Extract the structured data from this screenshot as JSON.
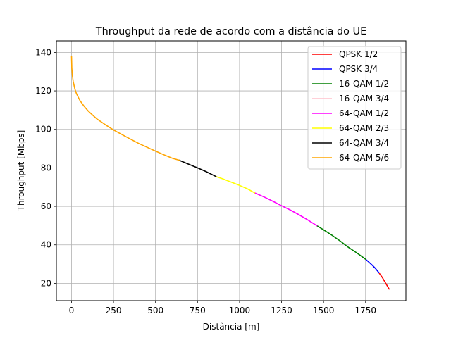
{
  "chart_data": {
    "type": "line",
    "title": "Throughput da rede de acordo com a distância do UE",
    "xlabel": "Distância [m]",
    "ylabel": "Throughput [Mbps]",
    "xlim": [
      -90,
      1990
    ],
    "ylim": [
      11,
      146
    ],
    "xticks": [
      0,
      250,
      500,
      750,
      1000,
      1250,
      1500,
      1750
    ],
    "xtick_labels": [
      "0",
      "250",
      "500",
      "750",
      "1000",
      "1250",
      "1500",
      "1750"
    ],
    "yticks": [
      20,
      40,
      60,
      80,
      100,
      120,
      140
    ],
    "ytick_labels": [
      "20",
      "40",
      "60",
      "80",
      "100",
      "120",
      "140"
    ],
    "grid": true,
    "legend_position": "top-right",
    "series": [
      {
        "name": "QPSK 1/2",
        "color": "#ff0000",
        "x": [
          1830,
          1850,
          1870,
          1890
        ],
        "y": [
          25.5,
          23.0,
          20.0,
          17.0
        ]
      },
      {
        "name": "QPSK 3/4",
        "color": "#0000ff",
        "x": [
          1750,
          1770,
          1790,
          1810,
          1830
        ],
        "y": [
          32.5,
          31.0,
          29.4,
          27.6,
          25.5
        ]
      },
      {
        "name": "16-QAM 1/2",
        "color": "#008000",
        "x": [
          1460,
          1500,
          1550,
          1600,
          1650,
          1700,
          1750
        ],
        "y": [
          50.0,
          47.8,
          45.0,
          41.9,
          38.6,
          35.7,
          32.5
        ]
      },
      {
        "name": "16-QAM 3/4",
        "color": "#ffc0cb",
        "x": [],
        "y": []
      },
      {
        "name": "64-QAM 1/2",
        "color": "#ff00ff",
        "x": [
          1090,
          1150,
          1200,
          1250,
          1300,
          1350,
          1400,
          1460
        ],
        "y": [
          67.0,
          64.7,
          62.6,
          60.3,
          58.2,
          55.8,
          53.3,
          50.0
        ]
      },
      {
        "name": "64-QAM 2/3",
        "color": "#ffff00",
        "x": [
          860,
          900,
          950,
          1000,
          1050,
          1090
        ],
        "y": [
          75.5,
          74.3,
          72.6,
          70.9,
          69.0,
          67.0
        ]
      },
      {
        "name": "64-QAM 3/4",
        "color": "#000000",
        "x": [
          640,
          700,
          750,
          800,
          860
        ],
        "y": [
          84.0,
          81.8,
          80.0,
          78.1,
          75.5
        ]
      },
      {
        "name": "64-QAM 5/6",
        "color": "#ffa500",
        "x": [
          0,
          2,
          5,
          10,
          20,
          30,
          50,
          75,
          100,
          150,
          200,
          250,
          300,
          350,
          400,
          450,
          500,
          550,
          600,
          640
        ],
        "y": [
          138,
          132,
          128,
          125,
          121,
          118.5,
          115,
          112,
          109.5,
          105.5,
          102.5,
          99.7,
          97.3,
          95.0,
          92.7,
          90.7,
          88.7,
          86.8,
          85.0,
          84.0
        ]
      }
    ]
  }
}
